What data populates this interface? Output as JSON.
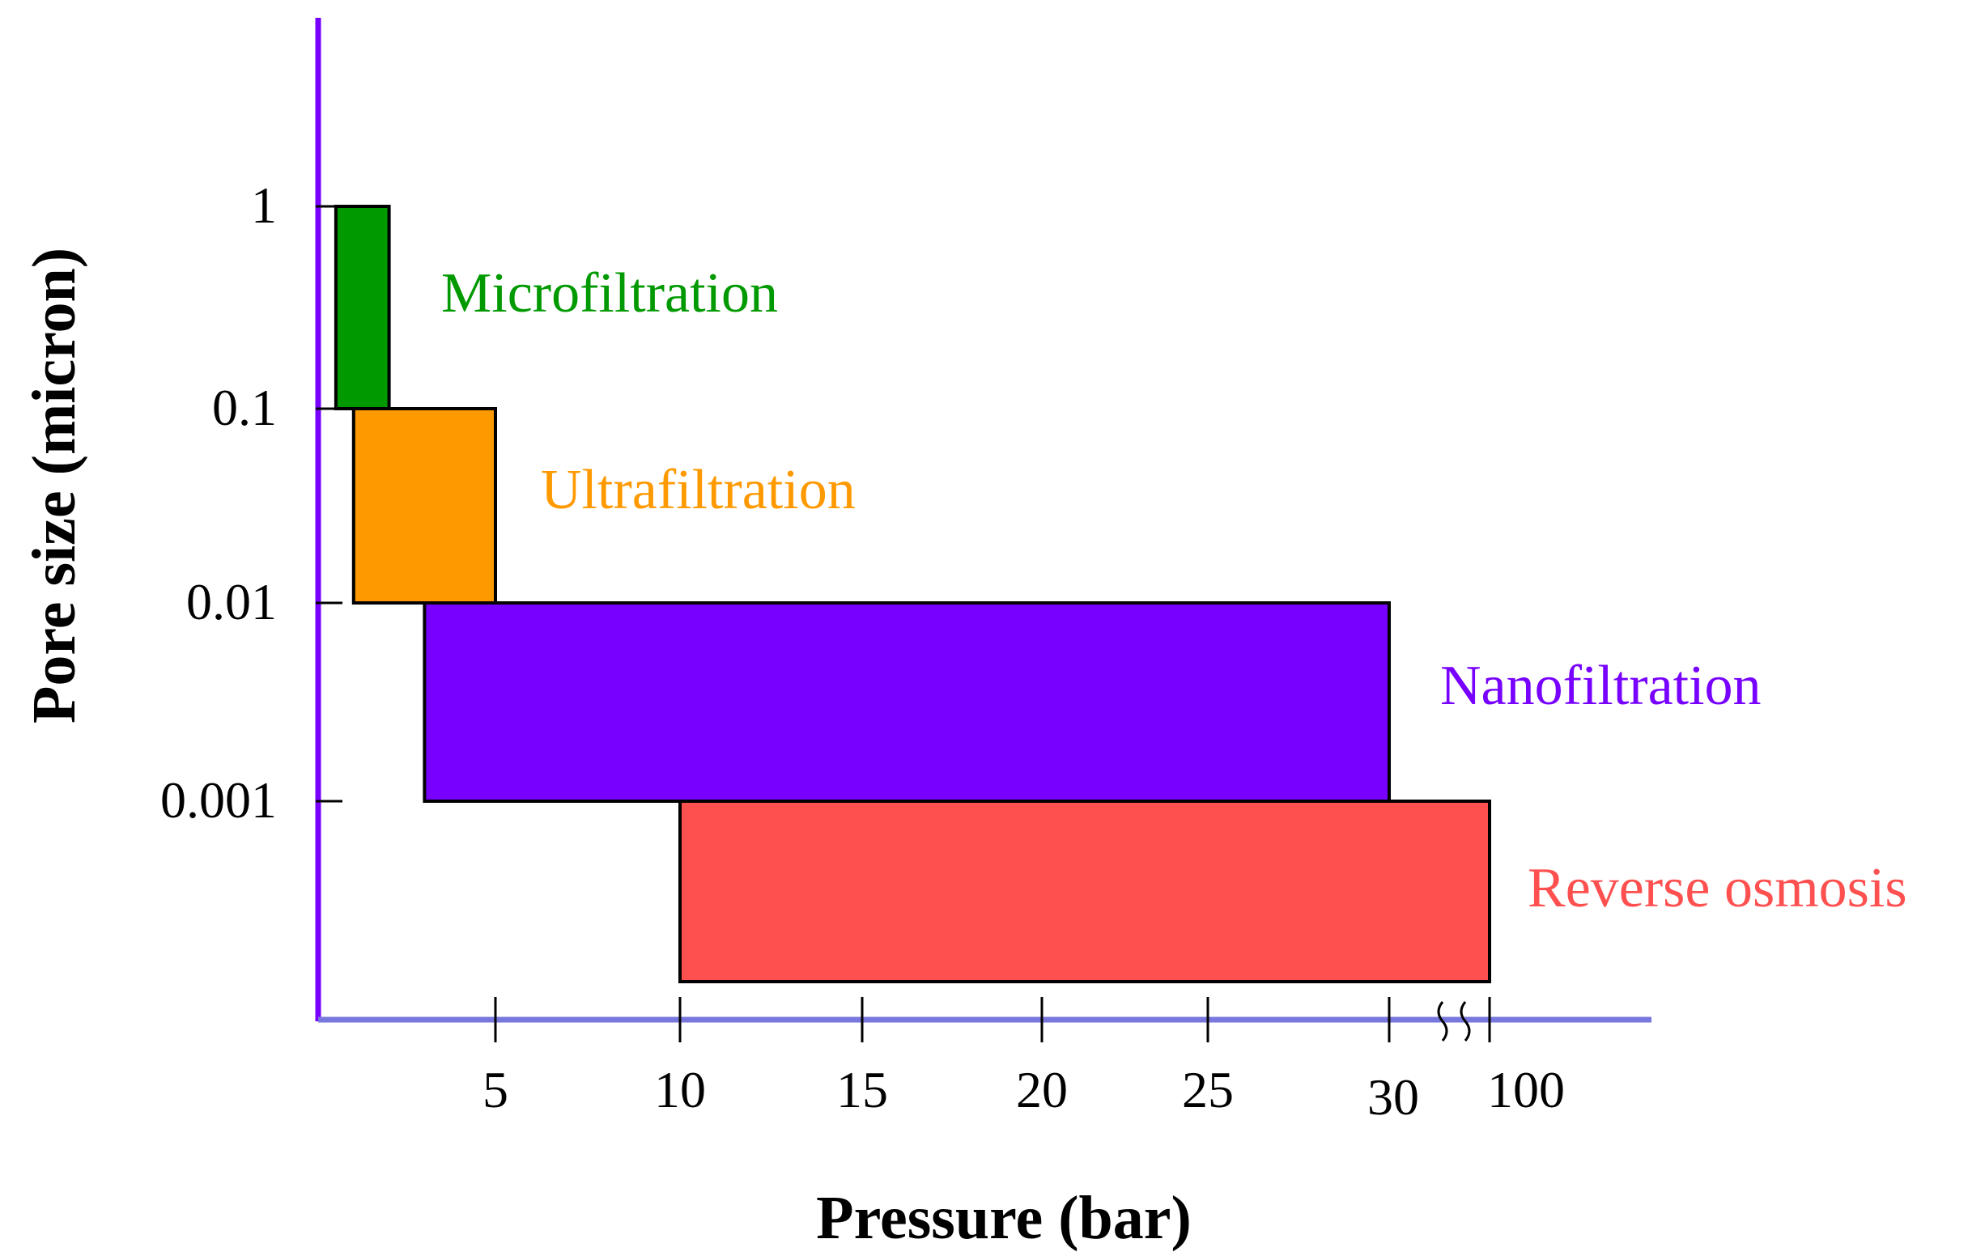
{
  "chart_data": {
    "type": "bar",
    "subtype": "floating-range",
    "title": "",
    "xlabel": "Pressure (bar)",
    "ylabel": "Pore size (micron)",
    "x_ticks": [
      "5",
      "10",
      "15",
      "20",
      "25",
      "30",
      "100"
    ],
    "x_axis_break": "between 30 and 100",
    "y_ticks": [
      "1",
      "0.1",
      "0.01",
      "0.001"
    ],
    "series": [
      {
        "name": "Microfiltration",
        "pressure_range": [
          0.5,
          2
        ],
        "pore_size_range": [
          0.1,
          1
        ],
        "color": "#009900"
      },
      {
        "name": "Ultrafiltration",
        "pressure_range": [
          1,
          5
        ],
        "pore_size_range": [
          0.01,
          0.1
        ],
        "color": "#FF9900"
      },
      {
        "name": "Nanofiltration",
        "pressure_range": [
          3,
          30
        ],
        "pore_size_range": [
          0.001,
          0.01
        ],
        "color": "#7700FF"
      },
      {
        "name": "Reverse osmosis",
        "pressure_range": [
          10,
          100
        ],
        "pore_size_range": [
          0.0001,
          0.001
        ],
        "color": "#FF5050"
      }
    ],
    "axis_colors": {
      "y_axis": "#7700FF",
      "x_axis": "#7777DD"
    }
  }
}
